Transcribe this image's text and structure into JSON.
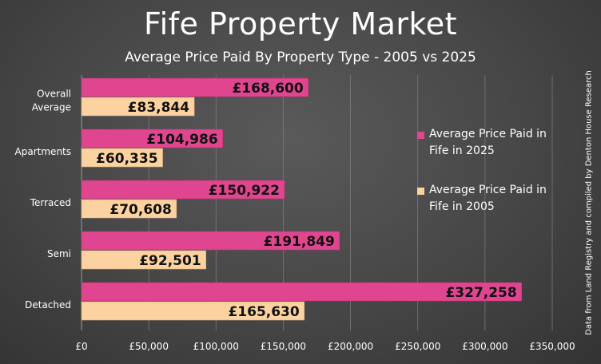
{
  "chart_data": {
    "type": "bar",
    "orientation": "horizontal",
    "title": "Fife Property Market",
    "subtitle": "Average Price Paid By Property Type - 2005 vs 2025",
    "categories": [
      "Overall Average",
      "Apartments",
      "Terraced",
      "Semi",
      "Detached"
    ],
    "series": [
      {
        "name": "Average Price Paid in Fife in 2025",
        "color": "#e0468f",
        "values": [
          168600,
          104986,
          150922,
          191849,
          327258
        ],
        "value_labels": [
          "£168,600",
          "£104,986",
          "£150,922",
          "£191,849",
          "£327,258"
        ]
      },
      {
        "name": "Average Price Paid in Fife in 2005",
        "color": "#fcd3a0",
        "values": [
          83844,
          60335,
          70608,
          92501,
          165630
        ],
        "value_labels": [
          "£83,844",
          "£60,335",
          "£70,608",
          "£92,501",
          "£165,630"
        ]
      }
    ],
    "xlim": [
      0,
      350000
    ],
    "x_ticks": [
      0,
      50000,
      100000,
      150000,
      200000,
      250000,
      300000,
      350000
    ],
    "x_tick_labels": [
      "£0",
      "£50,000",
      "£100,000",
      "£150,000",
      "£200,000",
      "£250,000",
      "£300,000",
      "£350,000"
    ],
    "grid": true,
    "legend_position": "right",
    "source_note": "Data from Land Registry and compiled by Denton House Research"
  }
}
